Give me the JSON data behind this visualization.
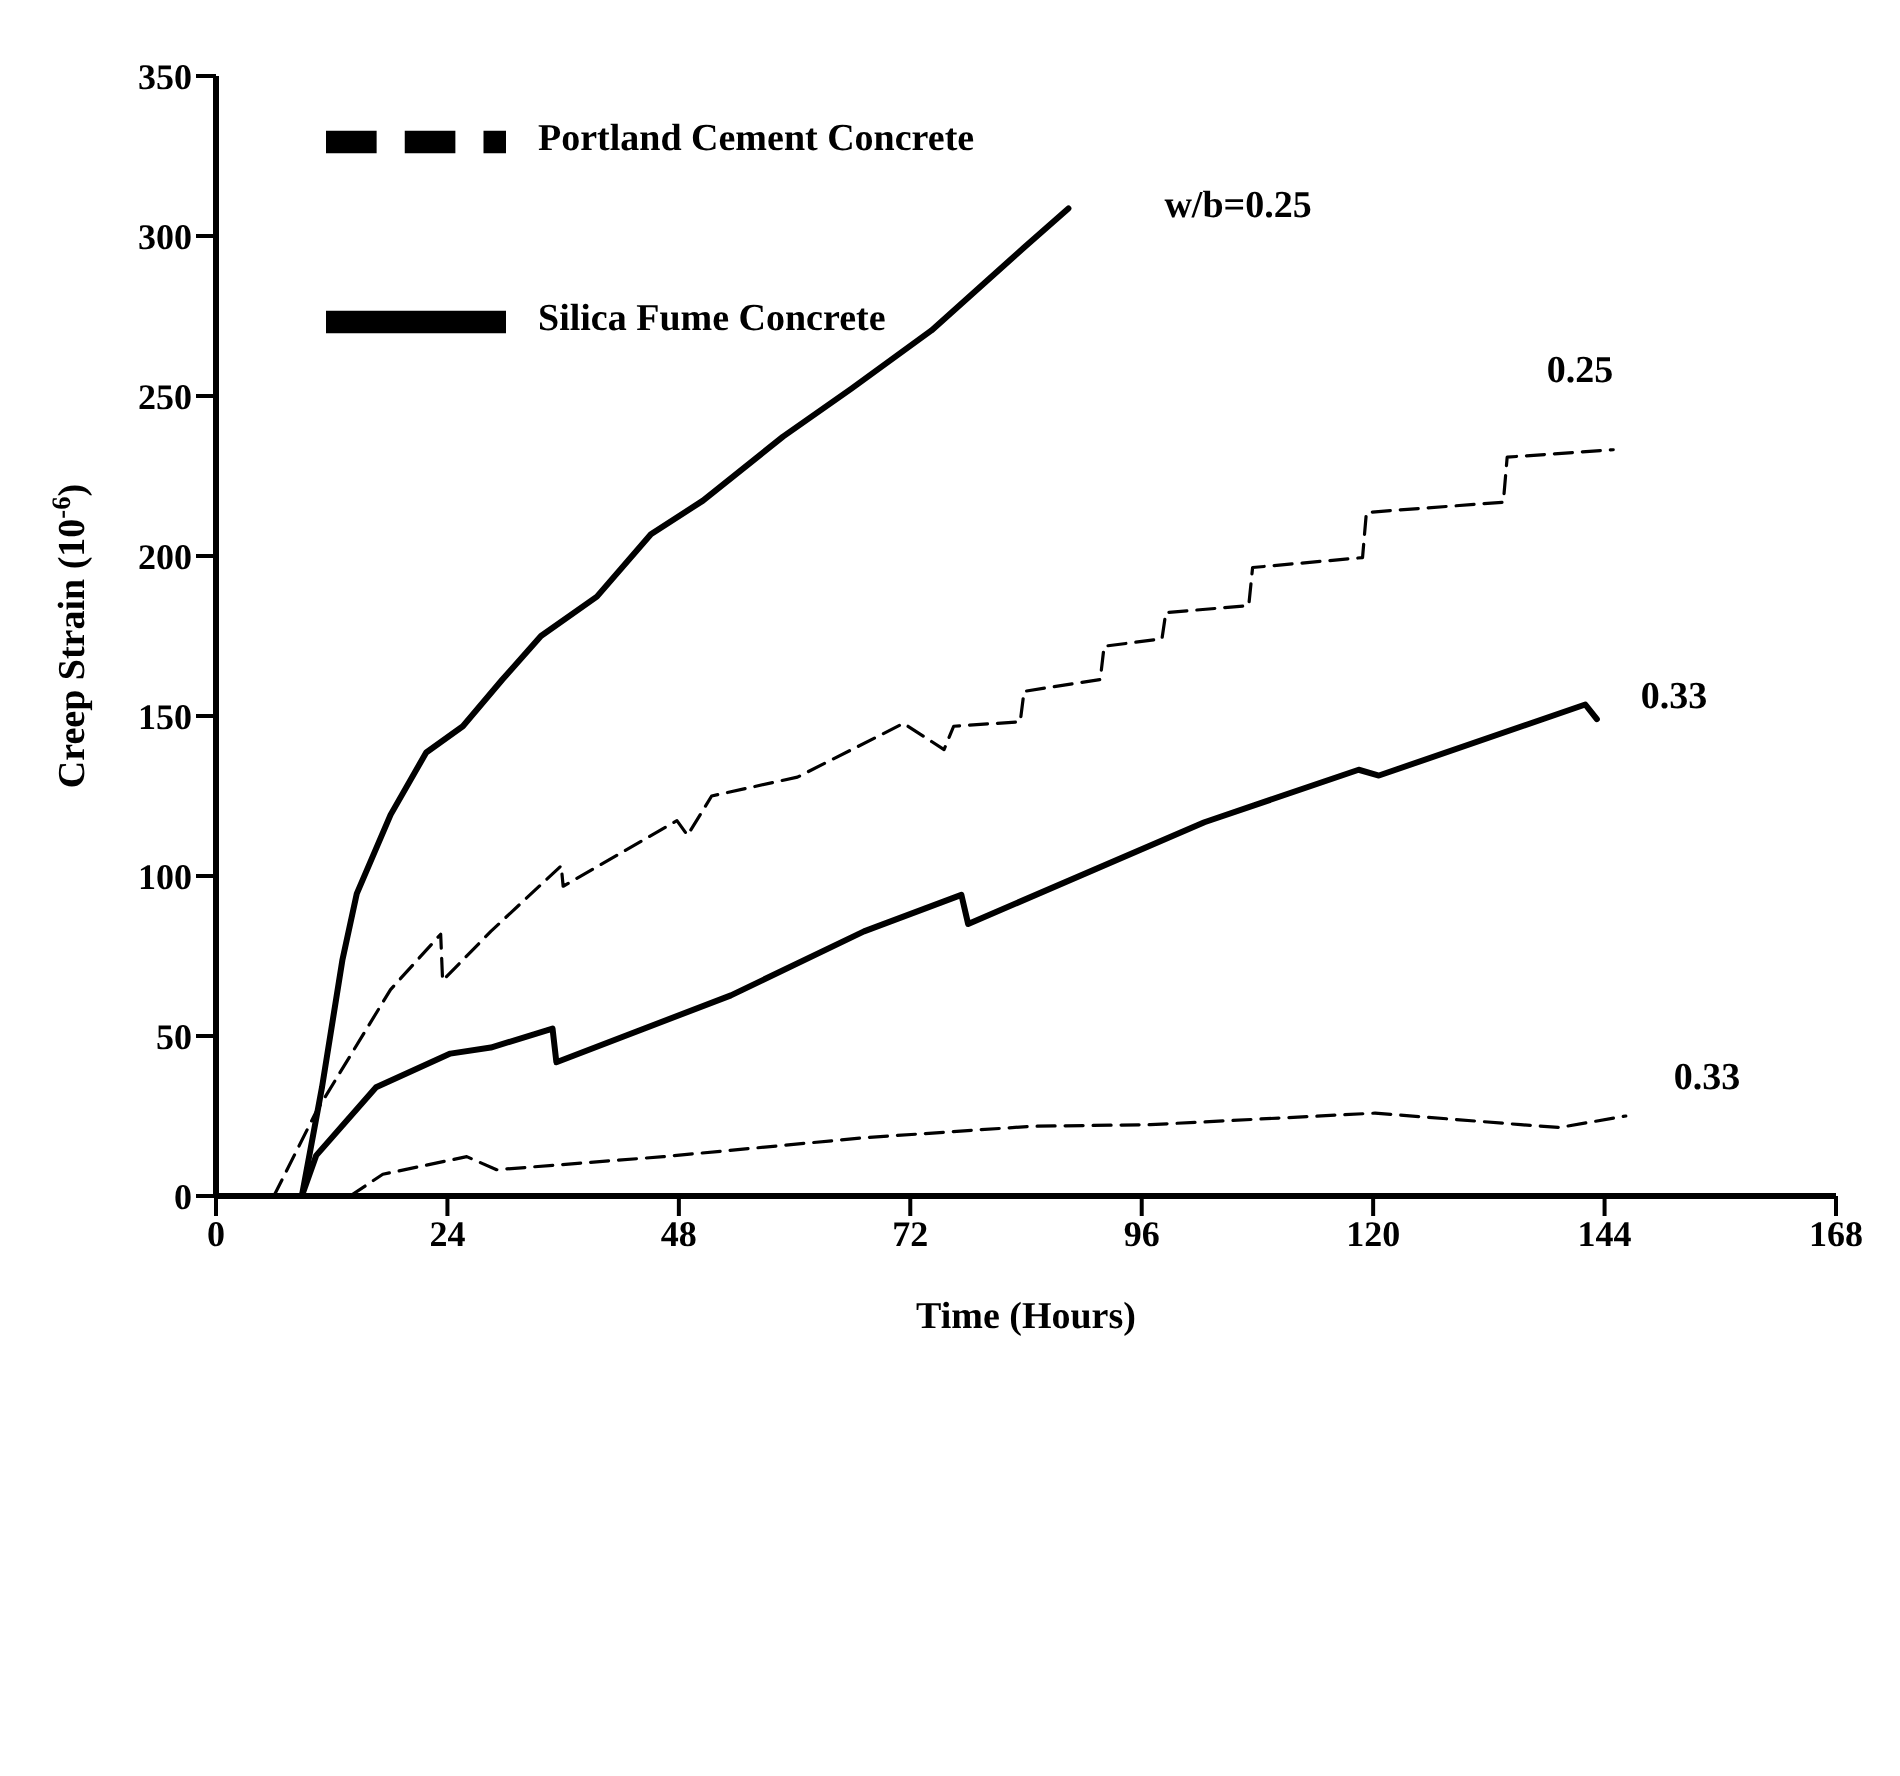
{
  "chart_data": {
    "type": "line",
    "xlabel": "Time (Hours)",
    "ylabel": "Creep Strain (10$^{-6}$)",
    "xlim": [
      0,
      168
    ],
    "xticks": [
      0,
      24,
      48,
      72,
      96,
      120,
      144,
      168
    ],
    "ylim": [
      0,
      350
    ],
    "yticks": [
      0,
      50,
      100,
      150,
      200,
      250,
      300,
      350
    ],
    "grid": false,
    "legend": "top left",
    "marker": "none",
    "series": [
      {
        "name": "Portland Cement Concrete",
        "color": "#000000",
        "line_style": "dashed",
        "x": [
          6.0,
          10.4,
          18.1,
          23.3,
          23.5,
          28.5,
          35.8,
          36.0,
          47.8,
          48.9,
          51.4,
          60.3,
          71.3,
          75.5,
          76.5,
          83.4,
          83.8,
          91.7,
          92.1,
          98.1,
          98.5,
          107.1,
          107.5,
          118.9,
          119.3,
          133.5,
          133.9,
          144.9
        ],
        "values": [
          0,
          26.4,
          64.5,
          81.8,
          67.3,
          82.7,
          103.2,
          96.8,
          117.3,
          112.7,
          125,
          130.9,
          147.7,
          139.5,
          146.8,
          148.2,
          157.7,
          161.4,
          171.8,
          174.1,
          182.3,
          184.5,
          196.4,
          199.5,
          213.6,
          216.8,
          230.9,
          233.2
        ]
      },
      {
        "name": "Silica Fume Concrete",
        "color": "#000000",
        "line_style": "solid",
        "x": [
          8.9,
          11.0,
          13.1,
          14.6,
          18.1,
          21.8,
          25.6,
          29.7,
          33.7,
          39.5,
          45.1,
          50.5,
          58.8,
          65.9,
          74.2,
          83.8,
          88.4
        ],
        "values": [
          0,
          34.1,
          73.6,
          94.5,
          119.1,
          138.6,
          146.8,
          161.4,
          175,
          187.3,
          206.8,
          217.3,
          237.3,
          252.3,
          270.5,
          296.4,
          308.6
        ]
      },
      {
        "color": "#000000",
        "line_style": "solid",
        "x": [
          8.9,
          10.4,
          16.6,
          24.3,
          28.5,
          34.9,
          35.3,
          53.4,
          67.2,
          77.3,
          78.0,
          102.5,
          118.5,
          120.6,
          142.0,
          143.2
        ],
        "values": [
          0,
          12.7,
          34,
          44.5,
          46.4,
          52.3,
          41.8,
          62.7,
          82.7,
          94.1,
          85,
          116.8,
          133.2,
          131.4,
          153.6,
          149
        ]
      },
      {
        "color": "#000000",
        "line_style": "dashed",
        "x": [
          13.9,
          17.3,
          26.0,
          29.1,
          46.4,
          67.2,
          84.6,
          96.9,
          120.2,
          135.3,
          139.3,
          146.2
        ],
        "values": [
          0,
          6.8,
          12.3,
          8.2,
          12.3,
          18.2,
          21.8,
          22.3,
          25.9,
          22.3,
          21.4,
          25
        ]
      }
    ],
    "annotations": [
      {
        "text": "w/b=0.25",
        "x": 88.4,
        "y": 308.6
      },
      {
        "text": "0.25",
        "x": 144.9,
        "y": 233.2
      },
      {
        "text": "0.33",
        "x": 143.2,
        "y": 149
      },
      {
        "text": "0.33",
        "x": 146.2,
        "y": 25
      }
    ]
  }
}
